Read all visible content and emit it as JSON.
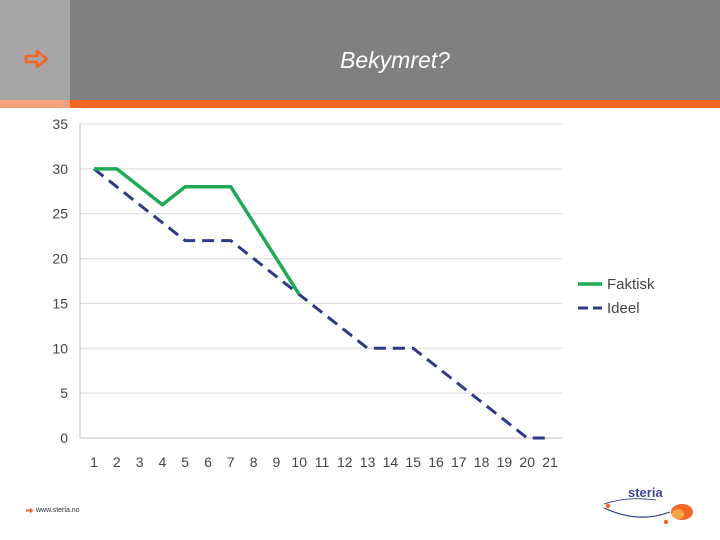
{
  "header": {
    "title": "Bekymret?",
    "accent_color": "#f26522",
    "arrow_icon": "right-arrow-icon"
  },
  "footer": {
    "url": "www.steria.no"
  },
  "logo": {
    "text": "steria"
  },
  "chart_data": {
    "type": "line",
    "x": [
      1,
      2,
      3,
      4,
      5,
      6,
      7,
      8,
      9,
      10,
      11,
      12,
      13,
      14,
      15,
      16,
      17,
      18,
      19,
      20,
      21
    ],
    "xlim": [
      1,
      21
    ],
    "ylim": [
      0,
      35
    ],
    "yticks": [
      0,
      5,
      10,
      15,
      20,
      25,
      30,
      35
    ],
    "grid": true,
    "legend_position": "right",
    "series": [
      {
        "name": "Faktisk",
        "color": "#1faa55",
        "style": "solid",
        "x": [
          1,
          2,
          3,
          4,
          5,
          6,
          7,
          8,
          9,
          10
        ],
        "values": [
          30,
          30,
          28,
          26,
          28,
          28,
          28,
          24,
          20,
          16
        ]
      },
      {
        "name": "Ideel",
        "color": "#2e3a87",
        "style": "dashed",
        "x": [
          1,
          2,
          3,
          4,
          5,
          6,
          7,
          8,
          9,
          10,
          11,
          12,
          13,
          14,
          15,
          16,
          17,
          18,
          19,
          20,
          21
        ],
        "values": [
          30,
          28,
          26,
          24,
          22,
          22,
          22,
          20,
          18,
          16,
          14,
          12,
          10,
          10,
          10,
          8,
          6,
          4,
          2,
          0,
          0
        ]
      }
    ]
  }
}
